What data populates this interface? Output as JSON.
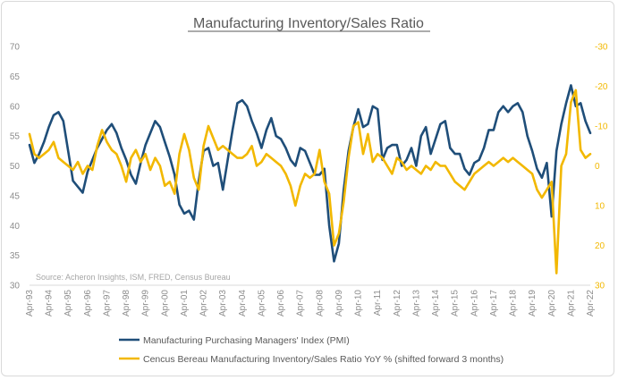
{
  "chart_data": {
    "type": "line",
    "title": "Manufacturing Inventory/Sales Ratio",
    "source_note": "Source: Acheron Insights, ISM, FRED, Census Bureau",
    "x_labels": [
      "Apr-93",
      "Apr-94",
      "Apr-95",
      "Apr-96",
      "Apr-97",
      "Apr-98",
      "Apr-99",
      "Apr-00",
      "Apr-01",
      "Apr-02",
      "Apr-03",
      "Apr-04",
      "Apr-05",
      "Apr-06",
      "Apr-07",
      "Apr-08",
      "Apr-09",
      "Apr-10",
      "Apr-11",
      "Apr-12",
      "Apr-13",
      "Apr-14",
      "Apr-15",
      "Apr-16",
      "Apr-17",
      "Apr-18",
      "Apr-19",
      "Apr-20",
      "Apr-21",
      "Apr-22"
    ],
    "y_left": {
      "ticks": [
        "30",
        "35",
        "40",
        "45",
        "50",
        "55",
        "60",
        "65",
        "70"
      ],
      "range": [
        30,
        70
      ]
    },
    "y_right": {
      "ticks": [
        "30",
        "20",
        "10",
        "0",
        "-10",
        "-20",
        "-30"
      ],
      "range_top_to_bottom": [
        -30,
        30
      ],
      "inverted": true
    },
    "series": [
      {
        "name": "Manufacturing Purchasing Managers' Index (PMI)",
        "axis": "left",
        "color": "#1f4e79",
        "points": [
          [
            1993.25,
            53.5
          ],
          [
            1993.5,
            50.5
          ],
          [
            1993.75,
            52
          ],
          [
            1994,
            54
          ],
          [
            1994.25,
            56.5
          ],
          [
            1994.5,
            58.5
          ],
          [
            1994.75,
            59
          ],
          [
            1995,
            57.5
          ],
          [
            1995.25,
            52.5
          ],
          [
            1995.5,
            47.5
          ],
          [
            1995.75,
            46.5
          ],
          [
            1996,
            45.5
          ],
          [
            1996.25,
            49
          ],
          [
            1996.5,
            51
          ],
          [
            1996.75,
            53
          ],
          [
            1997,
            54.5
          ],
          [
            1997.25,
            56
          ],
          [
            1997.5,
            57
          ],
          [
            1997.75,
            55.5
          ],
          [
            1998,
            53
          ],
          [
            1998.25,
            51
          ],
          [
            1998.5,
            48.5
          ],
          [
            1998.75,
            47
          ],
          [
            1999,
            50.5
          ],
          [
            1999.25,
            53.5
          ],
          [
            1999.5,
            55.5
          ],
          [
            1999.75,
            57.5
          ],
          [
            2000,
            56.5
          ],
          [
            2000.25,
            54
          ],
          [
            2000.5,
            51.5
          ],
          [
            2000.75,
            48.5
          ],
          [
            2001,
            43.5
          ],
          [
            2001.25,
            42
          ],
          [
            2001.5,
            42.5
          ],
          [
            2001.75,
            41
          ],
          [
            2002,
            47.5
          ],
          [
            2002.25,
            52.5
          ],
          [
            2002.5,
            53
          ],
          [
            2002.75,
            50
          ],
          [
            2003,
            50.5
          ],
          [
            2003.25,
            46
          ],
          [
            2003.5,
            51
          ],
          [
            2003.75,
            56
          ],
          [
            2004,
            60.5
          ],
          [
            2004.25,
            61
          ],
          [
            2004.5,
            60
          ],
          [
            2004.75,
            57.5
          ],
          [
            2005,
            55.5
          ],
          [
            2005.25,
            53
          ],
          [
            2005.5,
            56
          ],
          [
            2005.75,
            58
          ],
          [
            2006,
            55
          ],
          [
            2006.25,
            54.5
          ],
          [
            2006.5,
            53
          ],
          [
            2006.75,
            51
          ],
          [
            2007,
            50
          ],
          [
            2007.25,
            53
          ],
          [
            2007.5,
            52.5
          ],
          [
            2007.75,
            50.5
          ],
          [
            2008,
            48.5
          ],
          [
            2008.25,
            48.5
          ],
          [
            2008.5,
            49.5
          ],
          [
            2008.75,
            40
          ],
          [
            2009,
            34
          ],
          [
            2009.25,
            37
          ],
          [
            2009.5,
            46
          ],
          [
            2009.75,
            52.5
          ],
          [
            2010,
            56.5
          ],
          [
            2010.25,
            59.5
          ],
          [
            2010.5,
            56.5
          ],
          [
            2010.75,
            57
          ],
          [
            2011,
            60
          ],
          [
            2011.25,
            59.5
          ],
          [
            2011.5,
            51
          ],
          [
            2011.75,
            53
          ],
          [
            2012,
            53.5
          ],
          [
            2012.25,
            53.5
          ],
          [
            2012.5,
            50
          ],
          [
            2012.75,
            51
          ],
          [
            2013,
            53
          ],
          [
            2013.25,
            50
          ],
          [
            2013.5,
            55
          ],
          [
            2013.75,
            56.5
          ],
          [
            2014,
            52
          ],
          [
            2014.25,
            54.5
          ],
          [
            2014.5,
            57
          ],
          [
            2014.75,
            57.5
          ],
          [
            2015,
            53
          ],
          [
            2015.25,
            52
          ],
          [
            2015.5,
            52
          ],
          [
            2015.75,
            49.5
          ],
          [
            2016,
            48.5
          ],
          [
            2016.25,
            50.5
          ],
          [
            2016.5,
            51
          ],
          [
            2016.75,
            53
          ],
          [
            2017,
            56
          ],
          [
            2017.25,
            56
          ],
          [
            2017.5,
            59
          ],
          [
            2017.75,
            60
          ],
          [
            2018,
            59
          ],
          [
            2018.25,
            60
          ],
          [
            2018.5,
            60.5
          ],
          [
            2018.75,
            59
          ],
          [
            2019,
            55
          ],
          [
            2019.25,
            52.5
          ],
          [
            2019.5,
            49.5
          ],
          [
            2019.75,
            48
          ],
          [
            2020,
            50.5
          ],
          [
            2020.25,
            41.5
          ],
          [
            2020.5,
            52.5
          ],
          [
            2020.75,
            57
          ],
          [
            2021,
            60.5
          ],
          [
            2021.25,
            63.5
          ],
          [
            2021.5,
            60
          ],
          [
            2021.75,
            60.5
          ],
          [
            2022,
            57.5
          ],
          [
            2022.25,
            55.5
          ]
        ]
      },
      {
        "name": "Cencus Bereau Manufacturing Inventory/Sales Ratio YoY % (shifted forward 3 months)",
        "axis": "right",
        "color": "#f2b800",
        "points": [
          [
            1993.25,
            -8
          ],
          [
            1993.5,
            -3
          ],
          [
            1993.75,
            -2
          ],
          [
            1994,
            -3
          ],
          [
            1994.25,
            -4
          ],
          [
            1994.5,
            -6
          ],
          [
            1994.75,
            -2
          ],
          [
            1995,
            -1
          ],
          [
            1995.25,
            0
          ],
          [
            1995.5,
            1
          ],
          [
            1995.75,
            -1
          ],
          [
            1996,
            2
          ],
          [
            1996.25,
            0
          ],
          [
            1996.5,
            1
          ],
          [
            1996.75,
            -5
          ],
          [
            1997,
            -9
          ],
          [
            1997.25,
            -6
          ],
          [
            1997.5,
            -4
          ],
          [
            1997.75,
            -3
          ],
          [
            1998,
            0
          ],
          [
            1998.25,
            4
          ],
          [
            1998.5,
            -2
          ],
          [
            1998.75,
            -4
          ],
          [
            1999,
            -1
          ],
          [
            1999.25,
            -3
          ],
          [
            1999.5,
            1
          ],
          [
            1999.75,
            -2
          ],
          [
            2000,
            0
          ],
          [
            2000.25,
            5
          ],
          [
            2000.5,
            4
          ],
          [
            2000.75,
            7
          ],
          [
            2001,
            -3
          ],
          [
            2001.25,
            -8
          ],
          [
            2001.5,
            -4
          ],
          [
            2001.75,
            3
          ],
          [
            2002,
            6
          ],
          [
            2002.25,
            -5
          ],
          [
            2002.5,
            -10
          ],
          [
            2002.75,
            -7
          ],
          [
            2003,
            -4
          ],
          [
            2003.25,
            -5
          ],
          [
            2003.5,
            -4
          ],
          [
            2003.75,
            -3
          ],
          [
            2004,
            -2
          ],
          [
            2004.25,
            -2
          ],
          [
            2004.5,
            -3
          ],
          [
            2004.75,
            -5
          ],
          [
            2005,
            0
          ],
          [
            2005.25,
            -1
          ],
          [
            2005.5,
            -3
          ],
          [
            2005.75,
            -2
          ],
          [
            2006,
            -1
          ],
          [
            2006.25,
            0
          ],
          [
            2006.5,
            2
          ],
          [
            2006.75,
            5
          ],
          [
            2007,
            10
          ],
          [
            2007.25,
            5
          ],
          [
            2007.5,
            2
          ],
          [
            2007.75,
            3
          ],
          [
            2008,
            2
          ],
          [
            2008.25,
            -4
          ],
          [
            2008.5,
            4
          ],
          [
            2008.75,
            7
          ],
          [
            2009,
            20
          ],
          [
            2009.25,
            17
          ],
          [
            2009.5,
            9
          ],
          [
            2009.75,
            -2
          ],
          [
            2010,
            -10
          ],
          [
            2010.25,
            -11
          ],
          [
            2010.5,
            -3
          ],
          [
            2010.75,
            -8
          ],
          [
            2011,
            -1
          ],
          [
            2011.25,
            -3
          ],
          [
            2011.5,
            -2
          ],
          [
            2011.75,
            0
          ],
          [
            2012,
            2
          ],
          [
            2012.25,
            -2
          ],
          [
            2012.5,
            -1
          ],
          [
            2012.75,
            1
          ],
          [
            2013,
            0
          ],
          [
            2013.25,
            1
          ],
          [
            2013.5,
            2
          ],
          [
            2013.75,
            0
          ],
          [
            2014,
            1
          ],
          [
            2014.25,
            -1
          ],
          [
            2014.5,
            0
          ],
          [
            2014.75,
            0
          ],
          [
            2015,
            2
          ],
          [
            2015.25,
            4
          ],
          [
            2015.5,
            5
          ],
          [
            2015.75,
            6
          ],
          [
            2016,
            4
          ],
          [
            2016.25,
            2
          ],
          [
            2016.5,
            1
          ],
          [
            2016.75,
            0
          ],
          [
            2017,
            -1
          ],
          [
            2017.25,
            0
          ],
          [
            2017.5,
            -1
          ],
          [
            2017.75,
            -2
          ],
          [
            2018,
            -1
          ],
          [
            2018.25,
            -2
          ],
          [
            2018.5,
            -1
          ],
          [
            2018.75,
            0
          ],
          [
            2019,
            1
          ],
          [
            2019.25,
            2
          ],
          [
            2019.5,
            6
          ],
          [
            2019.75,
            8
          ],
          [
            2020,
            6
          ],
          [
            2020.25,
            4
          ],
          [
            2020.5,
            27
          ],
          [
            2020.75,
            0
          ],
          [
            2021,
            -3
          ],
          [
            2021.25,
            -16
          ],
          [
            2021.5,
            -19
          ],
          [
            2021.75,
            -4
          ],
          [
            2022,
            -2
          ],
          [
            2022.25,
            -3
          ]
        ]
      }
    ]
  }
}
